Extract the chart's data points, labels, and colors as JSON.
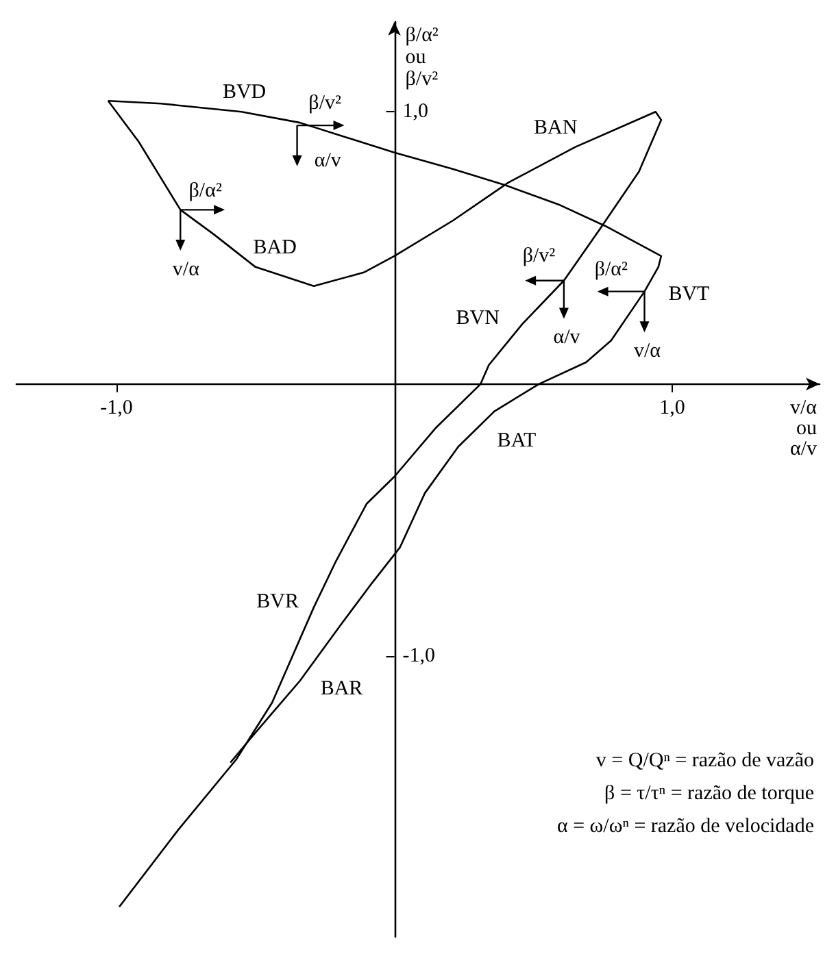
{
  "chart_data": {
    "type": "line",
    "xlabel": "v/α\nou\nα/v",
    "ylabel": "β/α²\nou\nβ/v²",
    "xlim": [
      -1.36,
      1.53
    ],
    "ylim": [
      -2.03,
      1.33
    ],
    "xticks": [
      {
        "value": -1,
        "label": "-1,0"
      },
      {
        "value": 1,
        "label": "1,0"
      }
    ],
    "yticks": [
      {
        "value": -1,
        "label": "-1,0"
      },
      {
        "value": 1,
        "label": "1,0"
      }
    ],
    "marker": "none",
    "line_style": "solid",
    "series": [
      {
        "color": "#000000",
        "x": [
          -1.03,
          -0.84,
          -0.55,
          -0.34,
          0,
          0.21,
          0.4,
          0.59,
          0.76,
          0.96,
          0.95,
          0.9,
          0.78,
          0.69,
          0.52,
          0.36,
          0.23,
          0.11,
          0.02,
          -0.08,
          -0.19,
          -0.34,
          -0.5,
          -0.59
        ],
        "values": [
          1.04,
          1.03,
          1.0,
          0.96,
          0.85,
          0.79,
          0.73,
          0.66,
          0.58,
          0.47,
          0.43,
          0.34,
          0.16,
          0.08,
          0,
          -0.1,
          -0.23,
          -0.4,
          -0.6,
          -0.73,
          -0.88,
          -1.09,
          -1.28,
          -1.39
        ]
      },
      {
        "color": "#000000",
        "x": [
          -1.03,
          -0.92,
          -0.77,
          -0.65,
          -0.5,
          -0.29,
          -0.11,
          0,
          0.21,
          0.41,
          0.65,
          0.94,
          0.96,
          0.88,
          0.74,
          0.61,
          0.46,
          0.34,
          0.31,
          0.15,
          0,
          -0.1,
          -0.21,
          -0.29,
          -0.44,
          -0.57,
          -0.78,
          -0.99
        ],
        "values": [
          1.04,
          0.89,
          0.64,
          0.55,
          0.43,
          0.36,
          0.41,
          0.47,
          0.6,
          0.74,
          0.87,
          1.0,
          0.97,
          0.78,
          0.57,
          0.38,
          0.22,
          0.07,
          0,
          -0.16,
          -0.34,
          -0.44,
          -0.65,
          -0.82,
          -1.17,
          -1.38,
          -1.64,
          -1.92
        ]
      }
    ],
    "annotations": [
      "BVD",
      "BAN",
      "BAD",
      "BVN",
      "BVT",
      "BAT",
      "BVR",
      "BAR",
      "β/v²",
      "α/v",
      "β/α²",
      "v/α",
      "β/v²",
      "α/v",
      "β/α²",
      "v/α",
      "v = Q/Qⁿ = razão de vazão",
      "β = τ/τⁿ = razão de torque",
      "α = ω/ωⁿ = razão de velocidade"
    ]
  }
}
